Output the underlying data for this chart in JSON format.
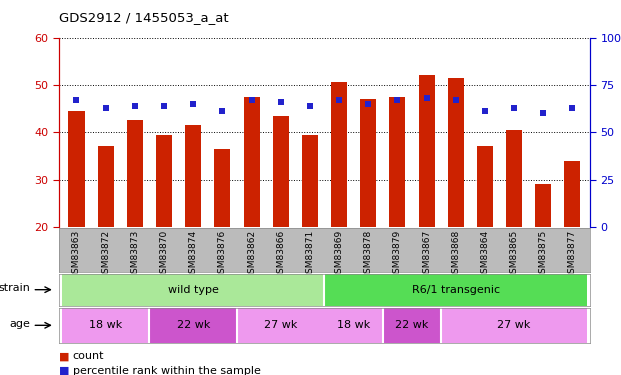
{
  "title": "GDS2912 / 1455053_a_at",
  "samples": [
    "GSM83863",
    "GSM83872",
    "GSM83873",
    "GSM83870",
    "GSM83874",
    "GSM83876",
    "GSM83862",
    "GSM83866",
    "GSM83871",
    "GSM83869",
    "GSM83878",
    "GSM83879",
    "GSM83867",
    "GSM83868",
    "GSM83864",
    "GSM83865",
    "GSM83875",
    "GSM83877"
  ],
  "counts": [
    44.5,
    37.0,
    42.5,
    39.5,
    41.5,
    36.5,
    47.5,
    43.5,
    39.5,
    50.5,
    47.0,
    47.5,
    52.0,
    51.5,
    37.0,
    40.5,
    29.0,
    34.0
  ],
  "percentiles": [
    67,
    63,
    64,
    64,
    65,
    61,
    67,
    66,
    64,
    67,
    65,
    67,
    68,
    67,
    61,
    63,
    60,
    63
  ],
  "ylim_left": [
    20,
    60
  ],
  "ylim_right": [
    0,
    100
  ],
  "yticks_left": [
    20,
    30,
    40,
    50,
    60
  ],
  "yticks_right": [
    0,
    25,
    50,
    75,
    100
  ],
  "bar_color": "#cc2200",
  "dot_color": "#2222cc",
  "bg_color": "#ffffff",
  "strain_groups": [
    {
      "label": "wild type",
      "start": 0,
      "end": 9,
      "color": "#aae899"
    },
    {
      "label": "R6/1 transgenic",
      "start": 9,
      "end": 18,
      "color": "#55dd55"
    }
  ],
  "age_groups": [
    {
      "label": "18 wk",
      "start": 0,
      "end": 3,
      "color": "#ee99ee"
    },
    {
      "label": "22 wk",
      "start": 3,
      "end": 6,
      "color": "#cc55cc"
    },
    {
      "label": "27 wk",
      "start": 6,
      "end": 9,
      "color": "#ee99ee"
    },
    {
      "label": "18 wk",
      "start": 9,
      "end": 11,
      "color": "#ee99ee"
    },
    {
      "label": "22 wk",
      "start": 11,
      "end": 13,
      "color": "#cc55cc"
    },
    {
      "label": "27 wk",
      "start": 13,
      "end": 18,
      "color": "#ee99ee"
    }
  ],
  "axis_color_left": "#cc0000",
  "axis_color_right": "#0000cc",
  "xticklabel_bg": "#bbbbbb"
}
